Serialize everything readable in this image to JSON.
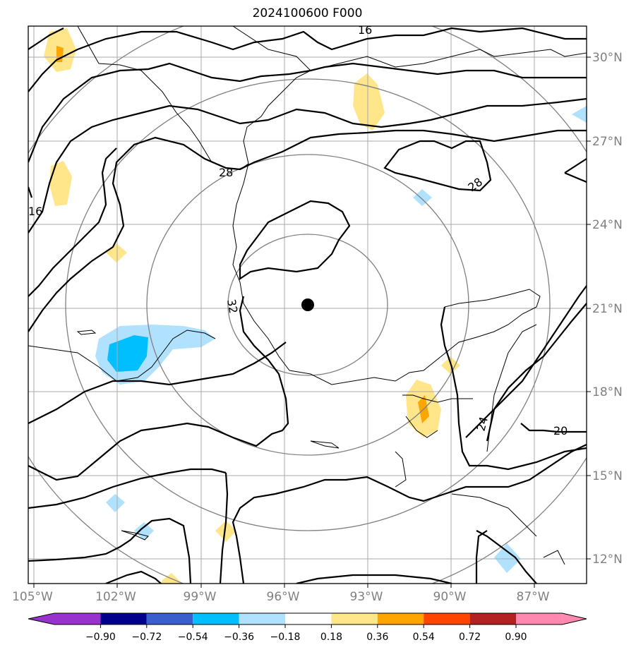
{
  "title": "2024100600 F000",
  "map": {
    "lon_ticks": [
      "105°W",
      "102°W",
      "99°W",
      "96°W",
      "93°W",
      "90°W",
      "87°W"
    ],
    "lat_ticks": [
      "30°N",
      "27°N",
      "24°N",
      "21°N",
      "18°N",
      "15°N",
      "12°N"
    ],
    "center_marker": {
      "lon": -95.0,
      "lat": 21.1
    },
    "contour_labels": [
      "16",
      "28",
      "16",
      "28",
      "32",
      "24",
      "20"
    ]
  },
  "colorbar": {
    "ticks": [
      "−0.90",
      "−0.72",
      "−0.54",
      "−0.36",
      "−0.18",
      "0.18",
      "0.36",
      "0.54",
      "0.72",
      "0.90"
    ],
    "colors": [
      "#9932cc",
      "#00008b",
      "#3a5fcd",
      "#00bfff",
      "#b0e2ff",
      "#ffffff",
      "#ffe68a",
      "#ffa500",
      "#ff4500",
      "#b22222",
      "#ff88b0"
    ]
  }
}
